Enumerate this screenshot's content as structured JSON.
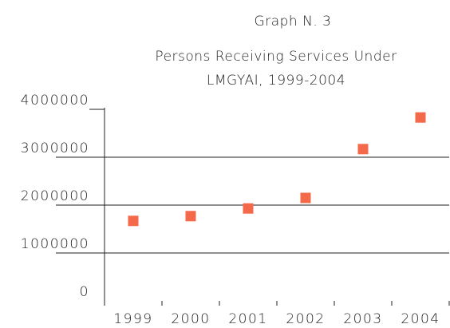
{
  "chart_data": {
    "type": "scatter",
    "title": "Graph N. 3",
    "subtitle": [
      "Persons Receiving Services Under",
      "LMGYAI, 1999-2004"
    ],
    "categories": [
      "1999",
      "2000",
      "2001",
      "2002",
      "2003",
      "2004"
    ],
    "values": [
      1670000,
      1770000,
      1930000,
      2150000,
      3170000,
      3830000
    ],
    "color": "#f4694a",
    "marker": "square",
    "ylim": [
      0,
      4000000
    ],
    "yticks": [
      0,
      1000000,
      2000000,
      3000000,
      4000000
    ],
    "grid": true
  }
}
